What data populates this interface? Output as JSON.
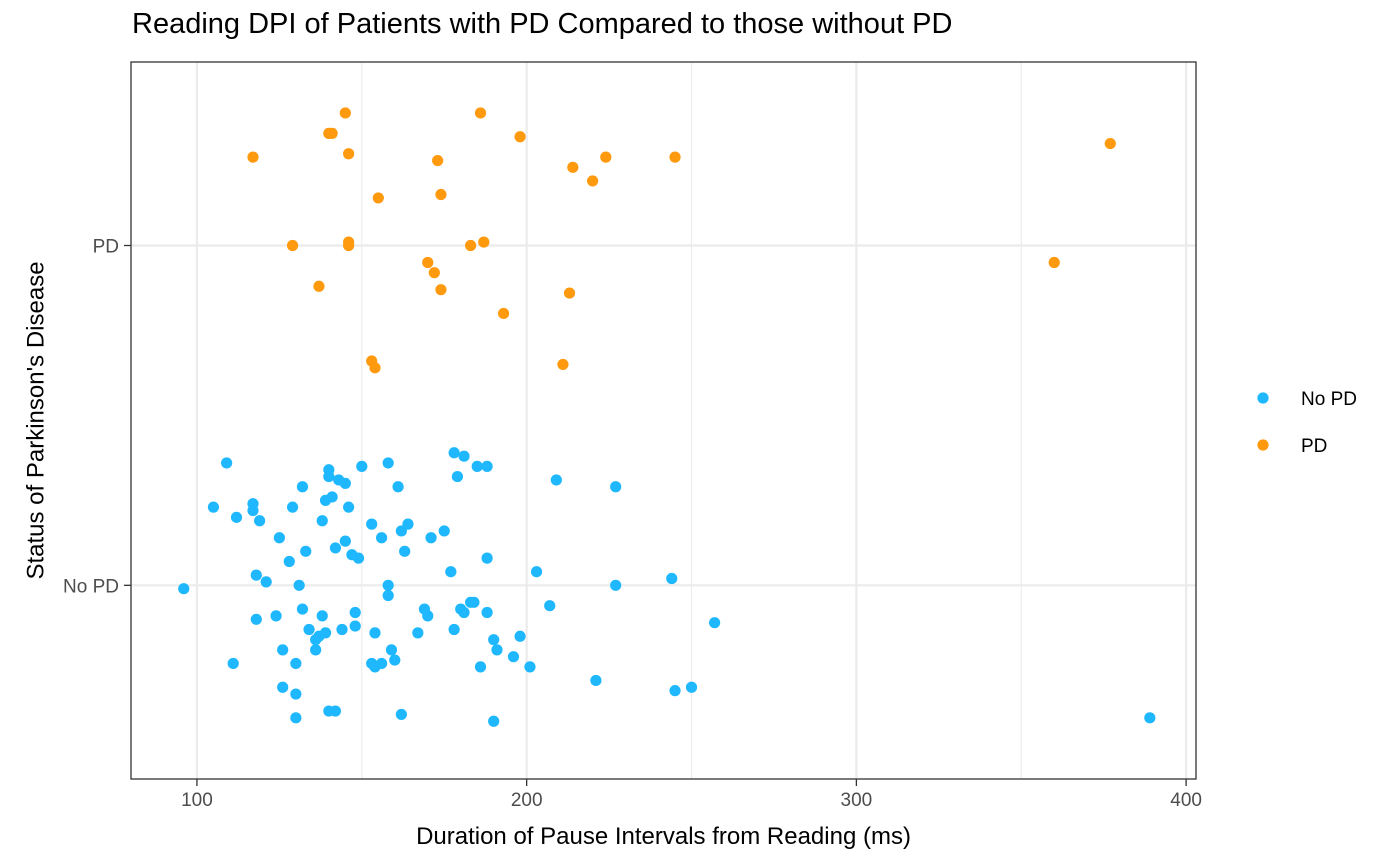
{
  "chart_data": {
    "type": "scatter",
    "title": "Reading DPI of Patients with PD Compared to those without PD",
    "xlabel": "Duration of Pause Intervals from Reading (ms)",
    "ylabel": "Status of Parkinson's Disease",
    "xlim": [
      80,
      403
    ],
    "x_ticks": [
      100,
      200,
      300,
      400
    ],
    "y_categories": [
      "No PD",
      "PD"
    ],
    "ylim": [
      0.43,
      2.54
    ],
    "grid": true,
    "legend_position": "right",
    "series": [
      {
        "name": "No PD",
        "color": "#1fb8ff",
        "points": [
          {
            "x": 96,
            "y": 0.99
          },
          {
            "x": 105,
            "y": 1.23
          },
          {
            "x": 109,
            "y": 1.36
          },
          {
            "x": 111,
            "y": 0.77
          },
          {
            "x": 112,
            "y": 1.2
          },
          {
            "x": 117,
            "y": 1.22
          },
          {
            "x": 117,
            "y": 1.24
          },
          {
            "x": 118,
            "y": 1.03
          },
          {
            "x": 118,
            "y": 0.9
          },
          {
            "x": 119,
            "y": 1.19
          },
          {
            "x": 121,
            "y": 1.01
          },
          {
            "x": 124,
            "y": 0.91
          },
          {
            "x": 125,
            "y": 1.14
          },
          {
            "x": 126,
            "y": 0.81
          },
          {
            "x": 126,
            "y": 0.7
          },
          {
            "x": 128,
            "y": 1.07
          },
          {
            "x": 129,
            "y": 1.23
          },
          {
            "x": 130,
            "y": 0.61
          },
          {
            "x": 130,
            "y": 0.68
          },
          {
            "x": 130,
            "y": 0.77
          },
          {
            "x": 131,
            "y": 1.0
          },
          {
            "x": 132,
            "y": 1.29
          },
          {
            "x": 132,
            "y": 0.93
          },
          {
            "x": 133,
            "y": 1.1
          },
          {
            "x": 134,
            "y": 0.87
          },
          {
            "x": 136,
            "y": 0.81
          },
          {
            "x": 136,
            "y": 0.84
          },
          {
            "x": 137,
            "y": 0.85
          },
          {
            "x": 138,
            "y": 1.19
          },
          {
            "x": 138,
            "y": 0.91
          },
          {
            "x": 139,
            "y": 1.25
          },
          {
            "x": 139,
            "y": 0.86
          },
          {
            "x": 140,
            "y": 1.34
          },
          {
            "x": 140,
            "y": 1.32
          },
          {
            "x": 140,
            "y": 0.63
          },
          {
            "x": 141,
            "y": 1.26
          },
          {
            "x": 142,
            "y": 0.63
          },
          {
            "x": 142,
            "y": 1.11
          },
          {
            "x": 143,
            "y": 1.31
          },
          {
            "x": 144,
            "y": 0.87
          },
          {
            "x": 145,
            "y": 1.13
          },
          {
            "x": 145,
            "y": 1.3
          },
          {
            "x": 146,
            "y": 1.23
          },
          {
            "x": 147,
            "y": 1.09
          },
          {
            "x": 148,
            "y": 0.92
          },
          {
            "x": 148,
            "y": 0.88
          },
          {
            "x": 149,
            "y": 1.08
          },
          {
            "x": 150,
            "y": 1.35
          },
          {
            "x": 153,
            "y": 1.18
          },
          {
            "x": 153,
            "y": 0.77
          },
          {
            "x": 154,
            "y": 0.76
          },
          {
            "x": 154,
            "y": 0.86
          },
          {
            "x": 156,
            "y": 0.77
          },
          {
            "x": 156,
            "y": 1.14
          },
          {
            "x": 158,
            "y": 1.36
          },
          {
            "x": 158,
            "y": 1.0
          },
          {
            "x": 158,
            "y": 0.97
          },
          {
            "x": 159,
            "y": 0.81
          },
          {
            "x": 160,
            "y": 0.78
          },
          {
            "x": 161,
            "y": 1.29
          },
          {
            "x": 162,
            "y": 0.62
          },
          {
            "x": 162,
            "y": 1.16
          },
          {
            "x": 163,
            "y": 1.1
          },
          {
            "x": 164,
            "y": 1.18
          },
          {
            "x": 167,
            "y": 0.86
          },
          {
            "x": 169,
            "y": 0.93
          },
          {
            "x": 170,
            "y": 0.91
          },
          {
            "x": 171,
            "y": 1.14
          },
          {
            "x": 175,
            "y": 1.16
          },
          {
            "x": 177,
            "y": 1.04
          },
          {
            "x": 178,
            "y": 1.39
          },
          {
            "x": 178,
            "y": 0.87
          },
          {
            "x": 179,
            "y": 1.32
          },
          {
            "x": 180,
            "y": 0.93
          },
          {
            "x": 181,
            "y": 1.38
          },
          {
            "x": 181,
            "y": 0.92
          },
          {
            "x": 183,
            "y": 0.95
          },
          {
            "x": 184,
            "y": 0.95
          },
          {
            "x": 185,
            "y": 1.35
          },
          {
            "x": 186,
            "y": 0.76
          },
          {
            "x": 188,
            "y": 1.35
          },
          {
            "x": 188,
            "y": 1.08
          },
          {
            "x": 188,
            "y": 0.92
          },
          {
            "x": 190,
            "y": 0.84
          },
          {
            "x": 190,
            "y": 0.6
          },
          {
            "x": 191,
            "y": 0.81
          },
          {
            "x": 196,
            "y": 0.79
          },
          {
            "x": 198,
            "y": 0.85
          },
          {
            "x": 201,
            "y": 0.76
          },
          {
            "x": 203,
            "y": 1.04
          },
          {
            "x": 207,
            "y": 0.94
          },
          {
            "x": 209,
            "y": 1.31
          },
          {
            "x": 221,
            "y": 0.72
          },
          {
            "x": 227,
            "y": 1.29
          },
          {
            "x": 227,
            "y": 1.0
          },
          {
            "x": 244,
            "y": 1.02
          },
          {
            "x": 245,
            "y": 0.69
          },
          {
            "x": 250,
            "y": 0.7
          },
          {
            "x": 257,
            "y": 0.89
          },
          {
            "x": 389,
            "y": 0.61
          }
        ]
      },
      {
        "name": "PD",
        "color": "#ff9a0e",
        "points": [
          {
            "x": 117,
            "y": 2.26
          },
          {
            "x": 129,
            "y": 2.0
          },
          {
            "x": 137,
            "y": 1.88
          },
          {
            "x": 140,
            "y": 2.33
          },
          {
            "x": 141,
            "y": 2.33
          },
          {
            "x": 145,
            "y": 2.39
          },
          {
            "x": 146,
            "y": 2.27
          },
          {
            "x": 146,
            "y": 2.01
          },
          {
            "x": 146,
            "y": 2.0
          },
          {
            "x": 153,
            "y": 1.66
          },
          {
            "x": 154,
            "y": 1.64
          },
          {
            "x": 155,
            "y": 2.14
          },
          {
            "x": 170,
            "y": 1.95
          },
          {
            "x": 172,
            "y": 1.92
          },
          {
            "x": 173,
            "y": 2.25
          },
          {
            "x": 174,
            "y": 1.87
          },
          {
            "x": 174,
            "y": 2.15
          },
          {
            "x": 183,
            "y": 2.0
          },
          {
            "x": 186,
            "y": 2.39
          },
          {
            "x": 187,
            "y": 2.01
          },
          {
            "x": 193,
            "y": 1.8
          },
          {
            "x": 198,
            "y": 2.32
          },
          {
            "x": 211,
            "y": 1.65
          },
          {
            "x": 213,
            "y": 1.86
          },
          {
            "x": 214,
            "y": 2.23
          },
          {
            "x": 220,
            "y": 2.19
          },
          {
            "x": 224,
            "y": 2.26
          },
          {
            "x": 245,
            "y": 2.26
          },
          {
            "x": 360,
            "y": 1.95
          },
          {
            "x": 377,
            "y": 2.3
          }
        ]
      }
    ]
  }
}
